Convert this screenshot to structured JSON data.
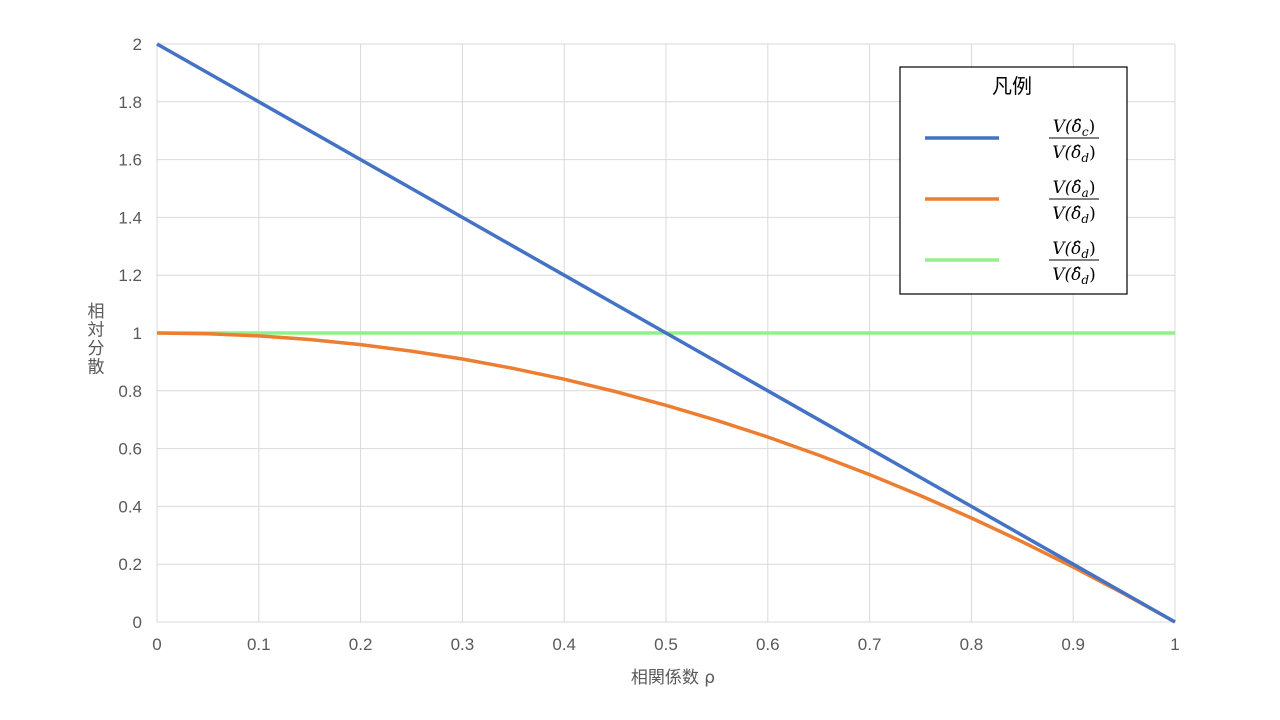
{
  "chart_data": {
    "type": "line",
    "title": "",
    "xlabel": "相関係数 ρ",
    "ylabel": "相対分散",
    "xlim": [
      0,
      1
    ],
    "ylim": [
      0,
      2
    ],
    "x_ticks": [
      "0",
      "0.1",
      "0.2",
      "0.3",
      "0.4",
      "0.5",
      "0.6",
      "0.7",
      "0.8",
      "0.9",
      "1"
    ],
    "y_ticks": [
      "0",
      "0.2",
      "0.4",
      "0.6",
      "0.8",
      "1",
      "1.2",
      "1.4",
      "1.6",
      "1.8",
      "2"
    ],
    "grid": true,
    "legend": {
      "title": "凡例",
      "placement": "top-right",
      "entries": [
        {
          "num_main": "V(δ̂",
          "num_sub": "c",
          "num_close": ")",
          "den_main": "V(δ̂",
          "den_sub": "d",
          "den_close": ")"
        },
        {
          "num_main": "V(δ̂",
          "num_sub": "a",
          "num_close": ")",
          "den_main": "V(δ̂",
          "den_sub": "d",
          "den_close": ")"
        },
        {
          "num_main": "V(δ̂",
          "num_sub": "d",
          "num_close": ")",
          "den_main": "V(δ̂",
          "den_sub": "d",
          "den_close": ")"
        }
      ]
    },
    "x": [
      0,
      0.05,
      0.1,
      0.15,
      0.2,
      0.25,
      0.3,
      0.35,
      0.4,
      0.45,
      0.5,
      0.55,
      0.6,
      0.65,
      0.7,
      0.75,
      0.8,
      0.85,
      0.9,
      0.95,
      1
    ],
    "series": [
      {
        "color": "#4472C4",
        "values": [
          2,
          1.9,
          1.8,
          1.7,
          1.6,
          1.5,
          1.4,
          1.3,
          1.2,
          1.1,
          1,
          0.9,
          0.8,
          0.7,
          0.6,
          0.5,
          0.4,
          0.3,
          0.2,
          0.1,
          0
        ]
      },
      {
        "color": "#ED7D31",
        "values": [
          1,
          0.9975,
          0.99,
          0.9775,
          0.96,
          0.9375,
          0.91,
          0.8775,
          0.84,
          0.7975,
          0.75,
          0.6975,
          0.64,
          0.5775,
          0.51,
          0.4375,
          0.36,
          0.2775,
          0.19,
          0.0975,
          0
        ]
      },
      {
        "color": "#92F08C",
        "values": [
          1,
          1,
          1,
          1,
          1,
          1,
          1,
          1,
          1,
          1,
          1,
          1,
          1,
          1,
          1,
          1,
          1,
          1,
          1,
          1,
          1
        ]
      }
    ]
  }
}
